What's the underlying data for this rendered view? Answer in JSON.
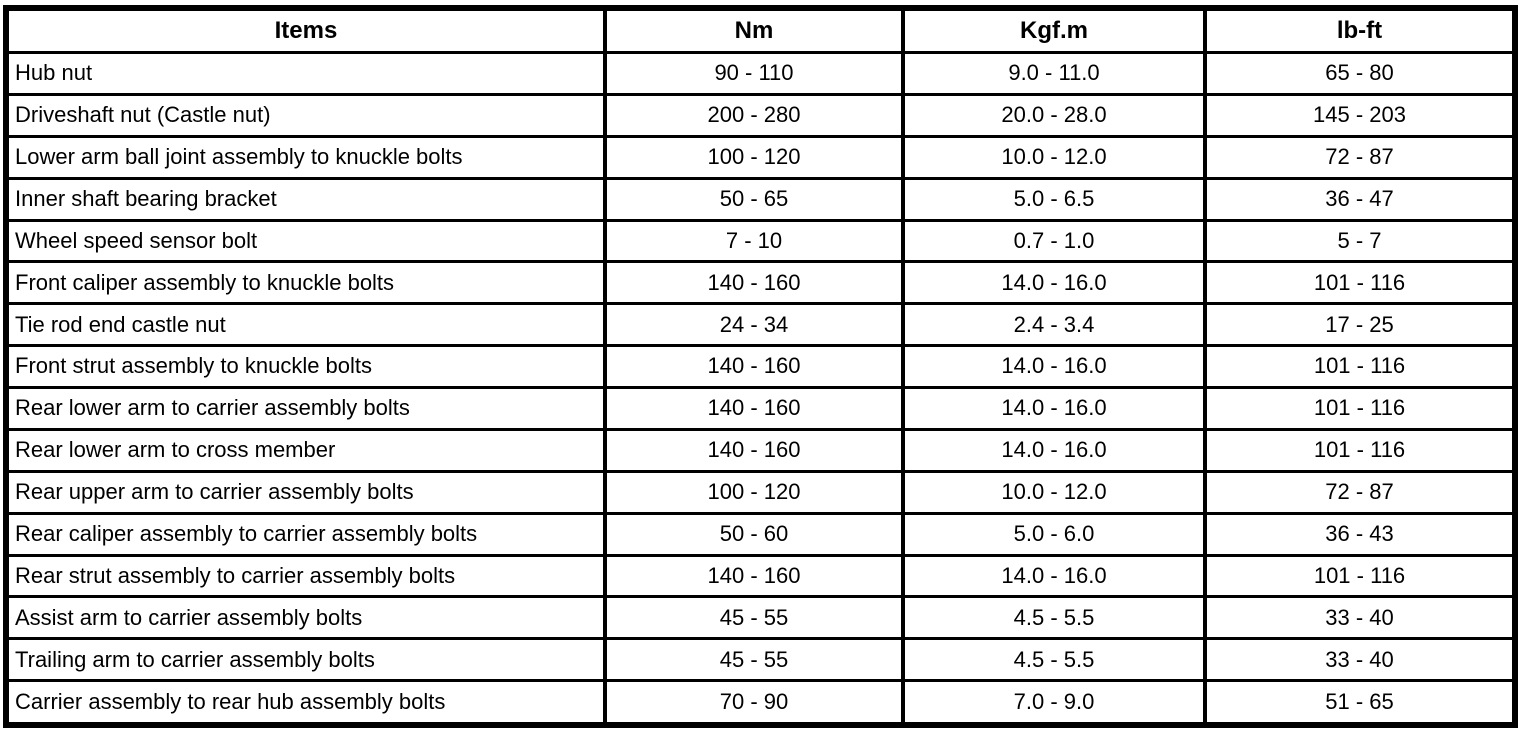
{
  "colors": {
    "background": "#ffffff",
    "border": "#000000",
    "text": "#000000"
  },
  "table": {
    "columns": [
      "Items",
      "Nm",
      "Kgf.m",
      "lb-ft"
    ],
    "rows": [
      {
        "item": "Hub nut",
        "nm": "90 - 110",
        "kgfm": "9.0 - 11.0",
        "lbft": "65 - 80"
      },
      {
        "item": "Driveshaft nut (Castle nut)",
        "nm": "200 - 280",
        "kgfm": "20.0 - 28.0",
        "lbft": "145 - 203"
      },
      {
        "item": "Lower arm ball joint assembly to knuckle bolts",
        "nm": "100 - 120",
        "kgfm": "10.0 - 12.0",
        "lbft": "72 - 87"
      },
      {
        "item": "Inner shaft bearing bracket",
        "nm": "50 - 65",
        "kgfm": "5.0 - 6.5",
        "lbft": "36 - 47"
      },
      {
        "item": "Wheel speed sensor bolt",
        "nm": "7 - 10",
        "kgfm": "0.7 - 1.0",
        "lbft": "5 - 7"
      },
      {
        "item": "Front caliper assembly to knuckle bolts",
        "nm": "140 - 160",
        "kgfm": "14.0 - 16.0",
        "lbft": "101 - 116"
      },
      {
        "item": "Tie rod end castle nut",
        "nm": "24 - 34",
        "kgfm": "2.4 - 3.4",
        "lbft": "17 - 25"
      },
      {
        "item": "Front strut assembly to knuckle bolts",
        "nm": "140 - 160",
        "kgfm": "14.0 - 16.0",
        "lbft": "101 - 116"
      },
      {
        "item": "Rear lower arm to carrier assembly bolts",
        "nm": "140 - 160",
        "kgfm": "14.0 - 16.0",
        "lbft": "101 - 116"
      },
      {
        "item": "Rear lower arm to cross member",
        "nm": "140 - 160",
        "kgfm": "14.0 - 16.0",
        "lbft": "101 - 116"
      },
      {
        "item": "Rear upper arm to carrier assembly bolts",
        "nm": "100 - 120",
        "kgfm": "10.0 - 12.0",
        "lbft": "72 - 87"
      },
      {
        "item": "Rear caliper assembly to carrier assembly bolts",
        "nm": "50 - 60",
        "kgfm": "5.0 - 6.0",
        "lbft": "36 - 43"
      },
      {
        "item": "Rear strut assembly to carrier assembly bolts",
        "nm": "140 - 160",
        "kgfm": "14.0 - 16.0",
        "lbft": "101 - 116"
      },
      {
        "item": "Assist arm to carrier assembly bolts",
        "nm": "45 - 55",
        "kgfm": "4.5 - 5.5",
        "lbft": "33 - 40"
      },
      {
        "item": "Trailing arm to carrier assembly bolts",
        "nm": "45 - 55",
        "kgfm": "4.5 - 5.5",
        "lbft": "33 - 40"
      },
      {
        "item": "Carrier assembly to rear hub assembly bolts",
        "nm": "70 - 90",
        "kgfm": "7.0 - 9.0",
        "lbft": "51 - 65"
      }
    ]
  }
}
